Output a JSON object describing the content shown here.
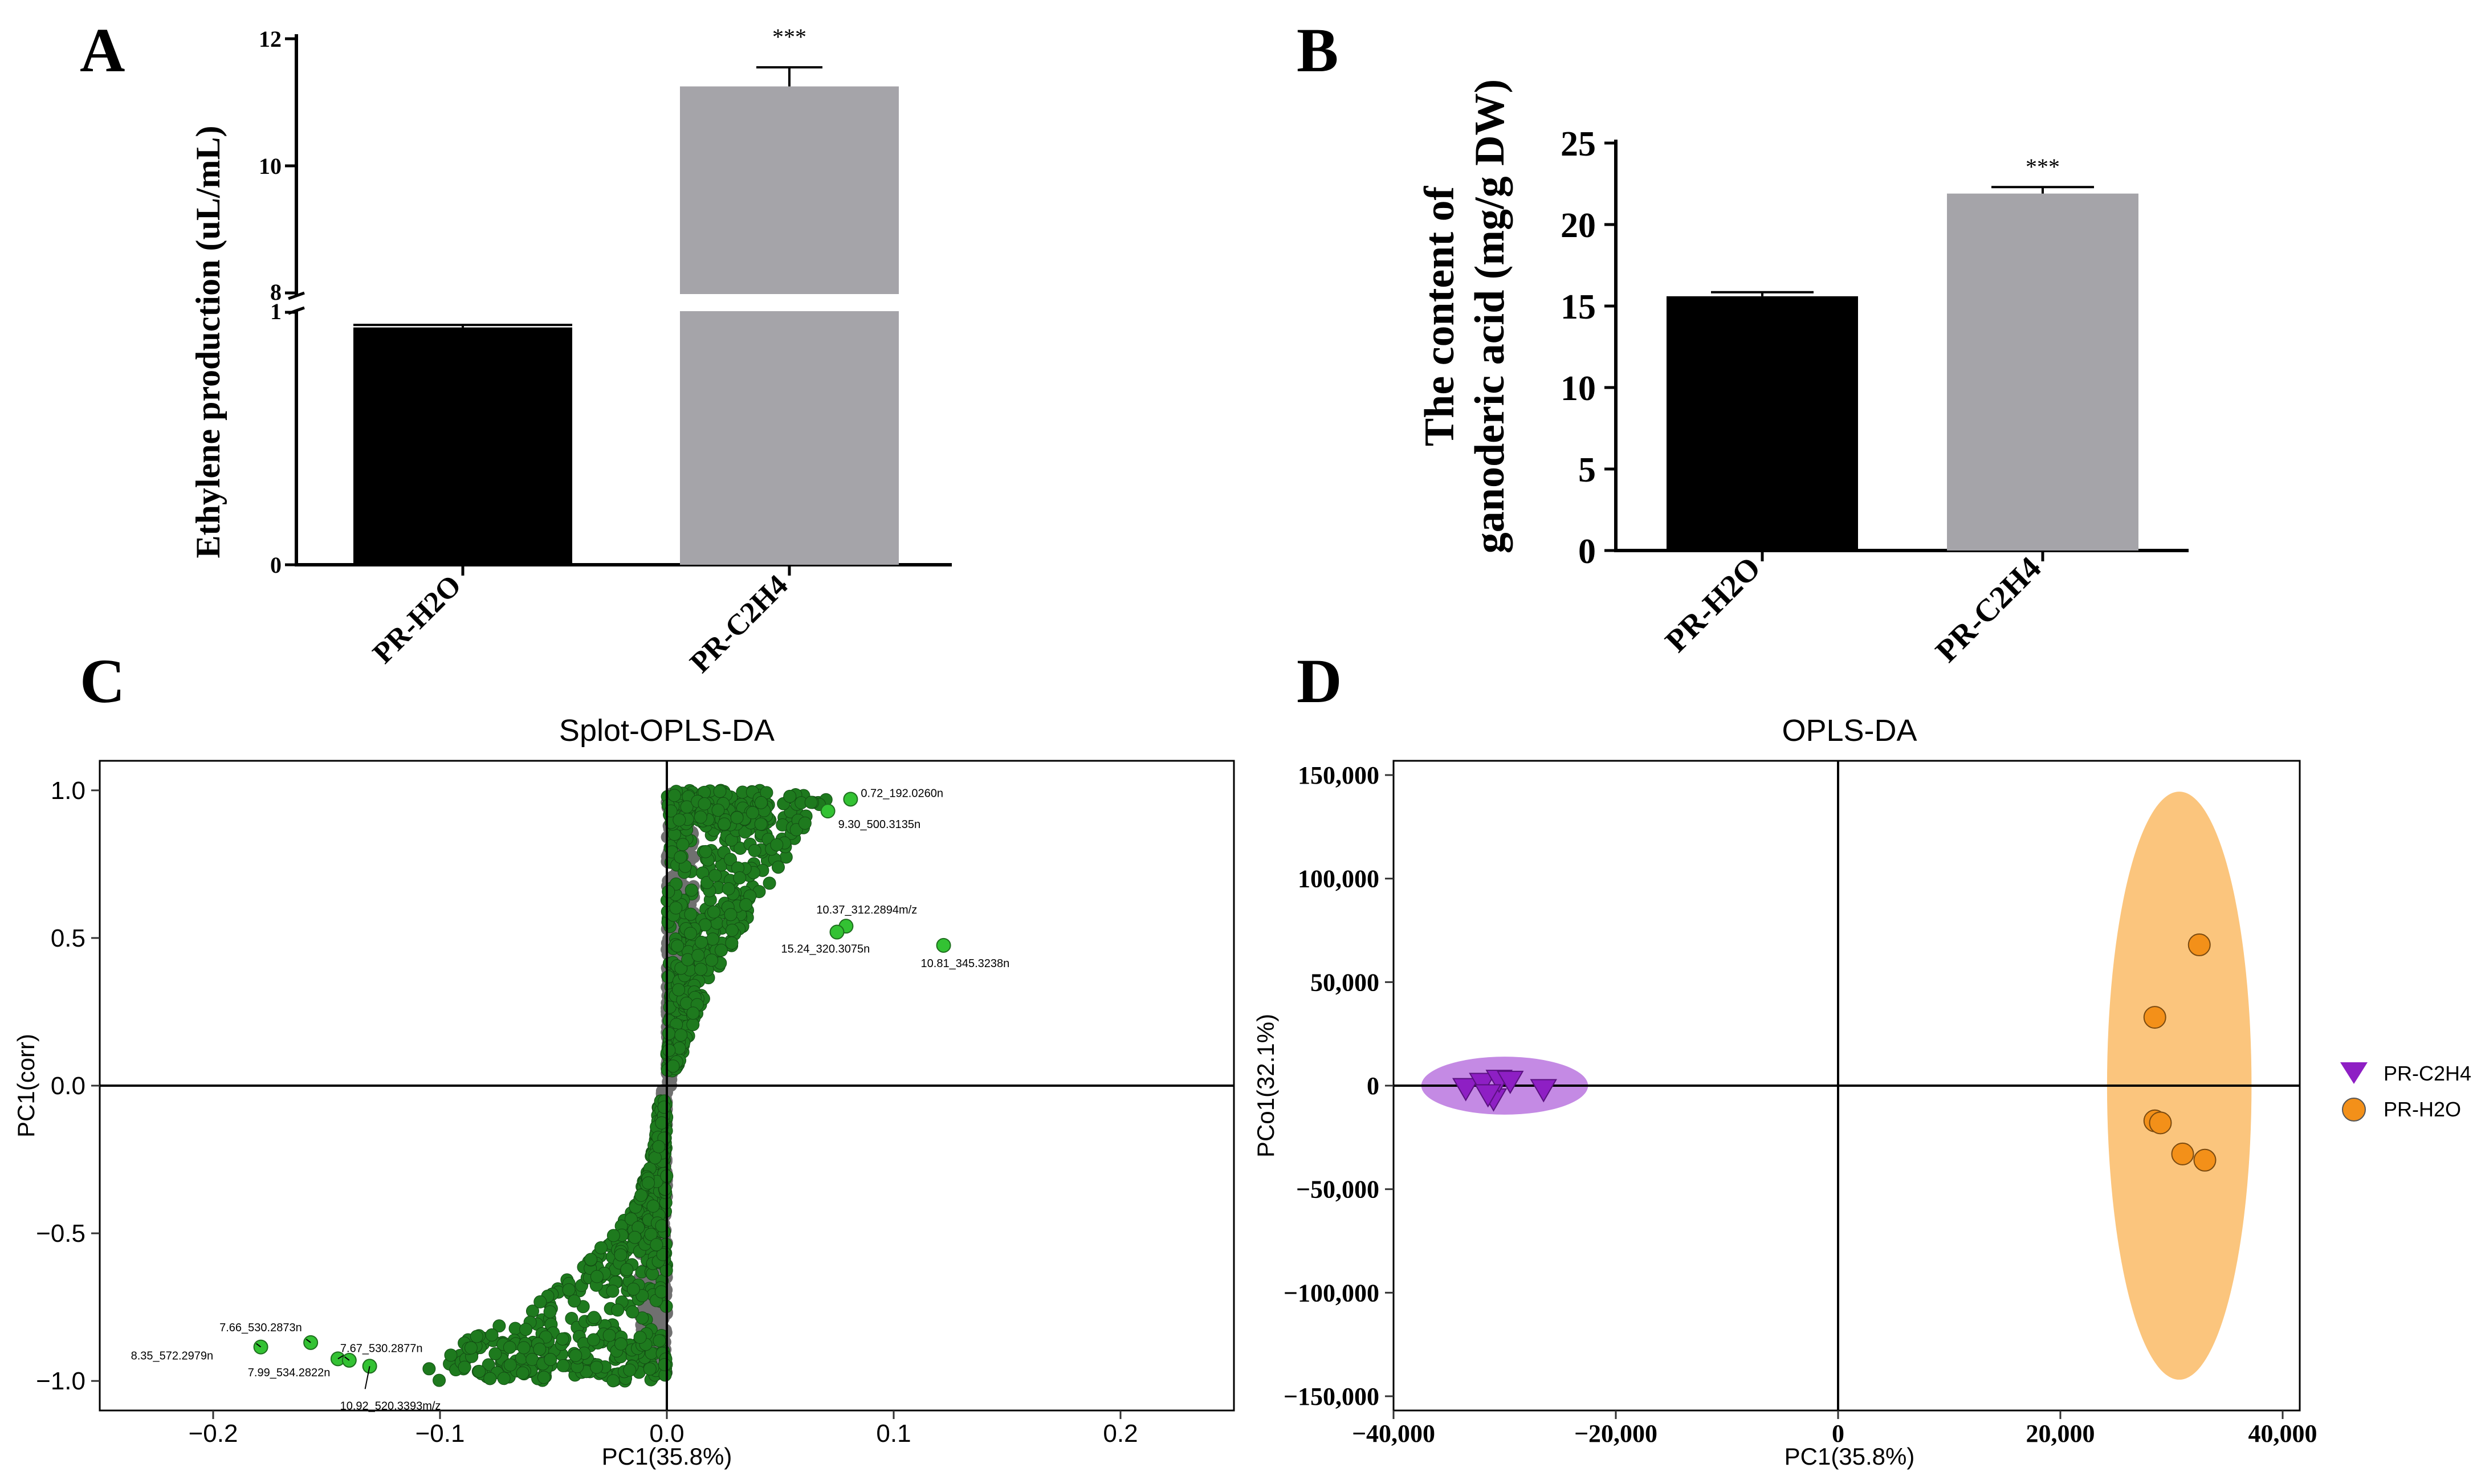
{
  "figure": {
    "panels": [
      "A",
      "B",
      "C",
      "D"
    ],
    "colors": {
      "black_bar": "#000000",
      "grey_bar": "#a5a4a9",
      "scatter_dark": "#1e7a1e",
      "scatter_highlight": "#33c233",
      "scatter_gray": "#707070",
      "c2h4": "#8e1fc4",
      "h2o": "#f39019",
      "c2h4_ellipse": "#c48ae4",
      "h2o_ellipse": "#fbc57d"
    }
  },
  "chart_data": [
    {
      "panel": "A",
      "type": "bar",
      "ylabel": "Ethylene production (uL/mL)",
      "categories": [
        "PR-H2O",
        "PR-C2H4"
      ],
      "values": [
        0.94,
        11.25
      ],
      "errors": [
        0.01,
        0.3
      ],
      "significance": [
        "",
        "***"
      ],
      "axis_break": {
        "lower_range": [
          0,
          1
        ],
        "upper_range": [
          8,
          12
        ]
      },
      "lower_ticks": [
        "0",
        "1"
      ],
      "upper_ticks": [
        "8",
        "10",
        "12"
      ]
    },
    {
      "panel": "B",
      "type": "bar",
      "ylabel_lines": [
        "The content of",
        "ganoderic acid (mg/g DW)"
      ],
      "categories": [
        "PR-H2O",
        "PR-C2H4"
      ],
      "values": [
        15.6,
        21.9
      ],
      "errors": [
        0.25,
        0.4
      ],
      "significance": [
        "",
        "***"
      ],
      "ylim": [
        0,
        25
      ],
      "yticks": [
        "0",
        "5",
        "10",
        "15",
        "20",
        "25"
      ]
    },
    {
      "panel": "C",
      "type": "scatter",
      "title": "Splot-OPLS-DA",
      "xlabel": "PC1(35.8%)",
      "ylabel": "PC1(corr)",
      "xlim": [
        -0.25,
        0.25
      ],
      "ylim": [
        -1.1,
        1.1
      ],
      "xticks": [
        "−0.2",
        "−0.1",
        "0.0",
        "0.1",
        "0.2"
      ],
      "yticks": [
        "−1.0",
        "−0.5",
        "0.0",
        "0.5",
        "1.0"
      ],
      "labeled_points": [
        {
          "label": "0.72_192.0260n",
          "x": 0.081,
          "y": 0.97
        },
        {
          "label": "9.30_500.3135n",
          "x": 0.071,
          "y": 0.93
        },
        {
          "label": "10.37_312.2894m/z",
          "x": 0.079,
          "y": 0.54
        },
        {
          "label": "15.24_320.3075n",
          "x": 0.075,
          "y": 0.52
        },
        {
          "label": "10.81_345.3238n",
          "x": 0.122,
          "y": 0.475
        },
        {
          "label": "7.66_530.2873n",
          "x": -0.157,
          "y": -0.87
        },
        {
          "label": "7.67_530.2877n",
          "x": -0.145,
          "y": -0.925
        },
        {
          "label": "8.35_572.2979n",
          "x": -0.179,
          "y": -0.885
        },
        {
          "label": "7.99_534.2822n",
          "x": -0.14,
          "y": -0.93
        },
        {
          "label": "10.92_520.3393m/z",
          "x": -0.131,
          "y": -0.95
        }
      ]
    },
    {
      "panel": "D",
      "type": "scatter",
      "title": "OPLS-DA",
      "xlabel": "PC1(35.8%)",
      "ylabel": "PCo1(32.1%)",
      "xlim": [
        -40000,
        40000
      ],
      "ylim": [
        -150000,
        150000
      ],
      "xticks": [
        "−40,000",
        "−20,000",
        "0",
        "20,000",
        "40,000"
      ],
      "yticks": [
        "150,000",
        "100,000",
        "50,000",
        "0",
        "−50,000",
        "−100,000",
        "−150,000"
      ],
      "series": [
        {
          "name": "PR-C2H4",
          "marker": "triangle-down",
          "points": [
            [
              -33500,
              -1000
            ],
            [
              -32000,
              1500
            ],
            [
              -31000,
              -6000
            ],
            [
              -30500,
              3000
            ],
            [
              -29500,
              2500
            ],
            [
              -31500,
              -4000
            ],
            [
              -26500,
              -1500
            ]
          ]
        },
        {
          "name": "PR-H2O",
          "marker": "circle",
          "points": [
            [
              32500,
              68000
            ],
            [
              28500,
              33000
            ],
            [
              28500,
              -17000
            ],
            [
              29000,
              -18000
            ],
            [
              31000,
              -33000
            ],
            [
              33000,
              -36000
            ]
          ]
        }
      ],
      "ellipses": [
        {
          "series": "PR-C2H4",
          "cx": -30000,
          "cy": 0,
          "rx": 7500,
          "ry": 14000
        },
        {
          "series": "PR-H2O",
          "cx": 30700,
          "cy": 0,
          "rx": 6500,
          "ry": 142000
        }
      ]
    }
  ]
}
